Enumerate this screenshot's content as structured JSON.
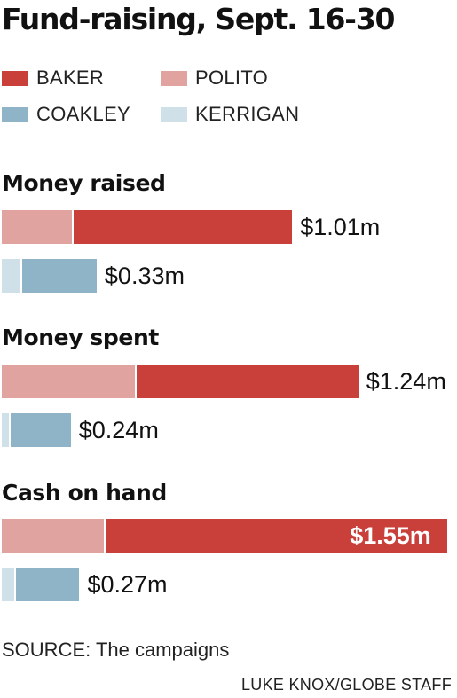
{
  "title": "Fund-raising, Sept. 16-30",
  "legend": [
    {
      "name": "BAKER",
      "color": "#c9403a"
    },
    {
      "name": "POLITO",
      "color": "#e0a3a0"
    },
    {
      "name": "COAKLEY",
      "color": "#8fb3c7"
    },
    {
      "name": "KERRIGAN",
      "color": "#cfe0e8"
    }
  ],
  "source": "SOURCE: The campaigns",
  "credit": "LUKE KNOX/GLOBE STAFF",
  "chart_data": {
    "type": "bar",
    "stacked": true,
    "unit": "$ millions",
    "colors": {
      "BAKER": "#c9403a",
      "POLITO": "#e0a3a0",
      "COAKLEY": "#8fb3c7",
      "KERRIGAN": "#cfe0e8"
    },
    "sections": [
      {
        "title": "Money raised",
        "bars": [
          {
            "ticket": "Baker/Polito",
            "total": 1.01,
            "label": "$1.01m",
            "segments": [
              {
                "name": "POLITO",
                "value": 0.25
              },
              {
                "name": "BAKER",
                "value": 0.76
              }
            ]
          },
          {
            "ticket": "Coakley/Kerrigan",
            "total": 0.33,
            "label": "$0.33m",
            "segments": [
              {
                "name": "KERRIGAN",
                "value": 0.07
              },
              {
                "name": "COAKLEY",
                "value": 0.26
              }
            ]
          }
        ]
      },
      {
        "title": "Money spent",
        "bars": [
          {
            "ticket": "Baker/Polito",
            "total": 1.24,
            "label": "$1.24m",
            "segments": [
              {
                "name": "POLITO",
                "value": 0.47
              },
              {
                "name": "BAKER",
                "value": 0.77
              }
            ]
          },
          {
            "ticket": "Coakley/Kerrigan",
            "total": 0.24,
            "label": "$0.24m",
            "segments": [
              {
                "name": "KERRIGAN",
                "value": 0.03
              },
              {
                "name": "COAKLEY",
                "value": 0.21
              }
            ]
          }
        ]
      },
      {
        "title": "Cash on hand",
        "bars": [
          {
            "ticket": "Baker/Polito",
            "total": 1.55,
            "label": "$1.55m",
            "label_inside": true,
            "segments": [
              {
                "name": "POLITO",
                "value": 0.36
              },
              {
                "name": "BAKER",
                "value": 1.19
              }
            ]
          },
          {
            "ticket": "Coakley/Kerrigan",
            "total": 0.27,
            "label": "$0.27m",
            "segments": [
              {
                "name": "KERRIGAN",
                "value": 0.05
              },
              {
                "name": "COAKLEY",
                "value": 0.22
              }
            ]
          }
        ]
      }
    ]
  }
}
